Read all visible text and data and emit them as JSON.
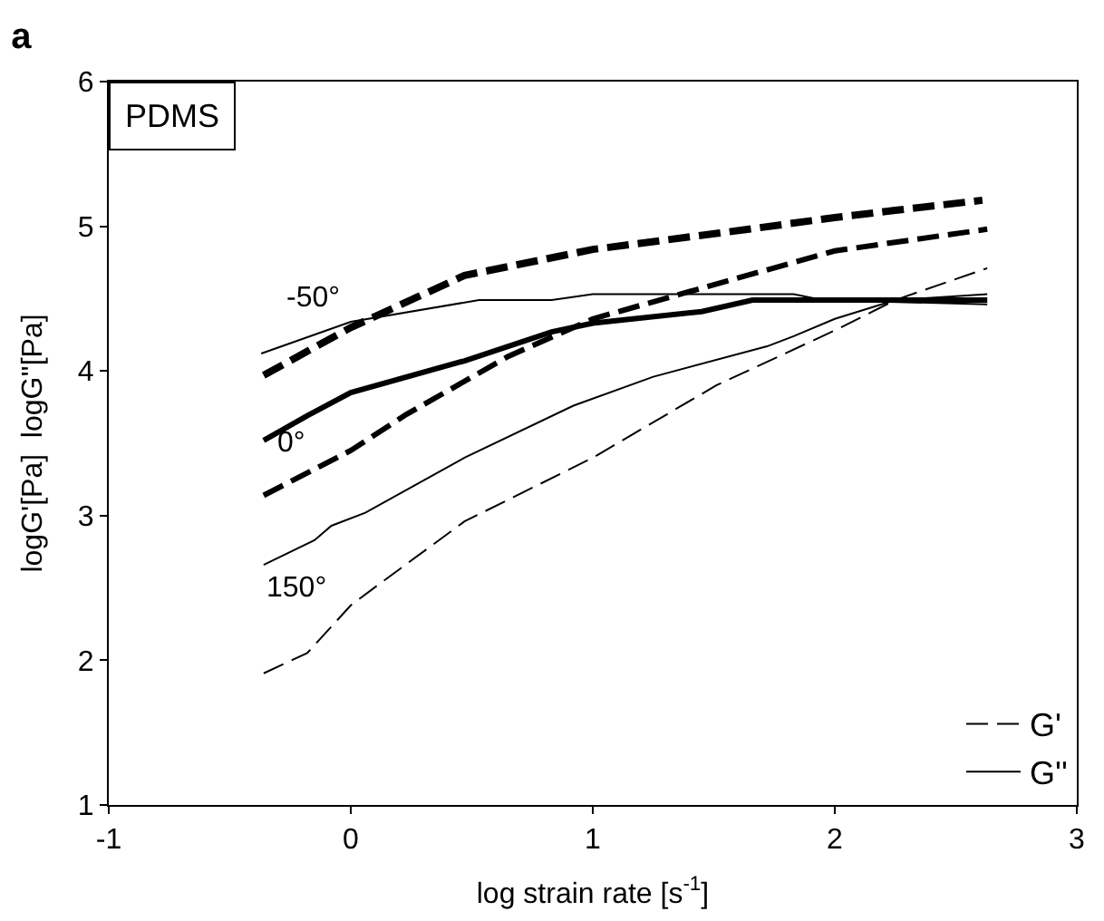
{
  "chart_data": {
    "type": "line",
    "title": "a",
    "xlabel": "log strain rate [s$^{-1}$]",
    "ylabel": "logG'[Pa]  logG''[Pa]",
    "xlim": [
      -1,
      3
    ],
    "xticks": [
      -1,
      0,
      1,
      2,
      3
    ],
    "ylim": [
      1,
      6
    ],
    "yticks": [
      1,
      2,
      3,
      4,
      5,
      6
    ],
    "legend": "bottom right",
    "marker": "none",
    "series": [
      {
        "color": "#000000",
        "line_style": "dashed",
        "x": [
          -0.36,
          0,
          0.47,
          1,
          1.51,
          2,
          2.25,
          2.61
        ],
        "values": [
          3.97,
          4.3,
          4.66,
          4.84,
          4.95,
          5.06,
          5.11,
          5.18
        ]
      },
      {
        "color": "#000000",
        "line_style": "solid",
        "x": [
          -0.37,
          0,
          0.53,
          0.83,
          1,
          1.83,
          1.95,
          2.63
        ],
        "values": [
          4.12,
          4.34,
          4.49,
          4.49,
          4.53,
          4.53,
          4.49,
          4.46
        ]
      },
      {
        "color": "#000000",
        "line_style": "dashed",
        "x": [
          -0.36,
          0,
          0.23,
          0.65,
          1,
          1.36,
          2,
          2.63
        ],
        "values": [
          3.14,
          3.45,
          3.7,
          4.1,
          4.36,
          4.53,
          4.83,
          4.98
        ]
      },
      {
        "color": "#000000",
        "line_style": "solid",
        "x": [
          -0.36,
          -0.18,
          0,
          0.47,
          0.83,
          1,
          1.45,
          1.66,
          2.63
        ],
        "values": [
          3.52,
          3.69,
          3.85,
          4.07,
          4.27,
          4.33,
          4.41,
          4.49,
          4.49
        ]
      },
      {
        "name": "G'",
        "color": "#000000",
        "line_style": "dashed",
        "x": [
          -0.36,
          -0.18,
          0,
          0.12,
          0.47,
          1,
          1.51,
          2,
          2.25,
          2.63
        ],
        "values": [
          1.91,
          2.05,
          2.38,
          2.53,
          2.96,
          3.4,
          3.9,
          4.28,
          4.49,
          4.71
        ]
      },
      {
        "name": "G''",
        "color": "#000000",
        "line_style": "solid",
        "x": [
          -0.36,
          -0.15,
          -0.08,
          0.06,
          0.47,
          0.92,
          1.25,
          1.72,
          1.83,
          2,
          2.25,
          2.63
        ],
        "values": [
          2.66,
          2.83,
          2.93,
          3.02,
          3.4,
          3.76,
          3.96,
          4.17,
          4.24,
          4.36,
          4.49,
          4.53
        ]
      }
    ],
    "annotations": [
      "-50°",
      "0°",
      "150°",
      "PDMS"
    ]
  }
}
